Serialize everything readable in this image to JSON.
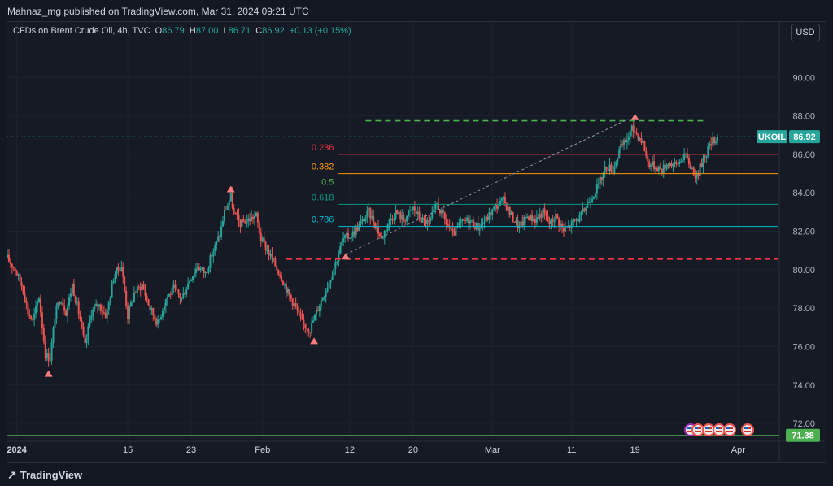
{
  "attribution": "Mahnaz_mg published on TradingView.com, Mar 31, 2024 09:21 UTC",
  "legend": {
    "title": "CFDs on Brent Crude Oil, 4h, TVC",
    "o_label": "O",
    "o_value": "86.79",
    "h_label": "H",
    "h_value": "87.00",
    "l_label": "L",
    "l_value": "86.71",
    "c_label": "C",
    "c_value": "86.92",
    "change": "+0.13 (+0.15%)"
  },
  "currency_button": "USD",
  "footer_brand": "TradingView",
  "colors": {
    "up": "#26a69a",
    "down": "#ef5350",
    "background": "#161a25",
    "fib_0236": "#f23645",
    "fib_0382": "#ff9800",
    "fib_05": "#4caf50",
    "fib_0618": "#089981",
    "fib_0786": "#00bcd4",
    "resistance": "#4caf50",
    "support": "#f23645",
    "trendline": "#9598a1",
    "marker": "#f77c80"
  },
  "chart_data": {
    "type": "candlestick",
    "symbol": "UKOIL",
    "timeframe": "4h",
    "ylim": [
      71.2,
      92.0
    ],
    "y_ticks": [
      "72.00",
      "74.00",
      "76.00",
      "78.00",
      "80.00",
      "82.00",
      "84.00",
      "86.00",
      "88.00",
      "90.00"
    ],
    "x_ticks": [
      {
        "label": "2024",
        "day": 1
      },
      {
        "label": "15",
        "day": 15
      },
      {
        "label": "23",
        "day": 23
      },
      {
        "label": "Feb",
        "day": 32
      },
      {
        "label": "12",
        "day": 43
      },
      {
        "label": "20",
        "day": 51
      },
      {
        "label": "Mar",
        "day": 61
      },
      {
        "label": "11",
        "day": 71
      },
      {
        "label": "19",
        "day": 79
      },
      {
        "label": "Apr",
        "day": 92
      }
    ],
    "last_price_label": "UKOIL",
    "last_price": 86.92,
    "bottom_line_value": 71.38,
    "bottom_line_label": "71.38",
    "fib_levels": [
      {
        "label": "0.236",
        "value": 86.0,
        "color": "#f23645"
      },
      {
        "label": "0.382",
        "value": 85.0,
        "color": "#ff9800"
      },
      {
        "label": "0.5",
        "value": 84.2,
        "color": "#4caf50"
      },
      {
        "label": "0.618",
        "value": 83.4,
        "color": "#089981"
      },
      {
        "label": "0.786",
        "value": 82.25,
        "color": "#00bcd4"
      }
    ],
    "resistance": {
      "value": 87.75,
      "from_day": 45,
      "to_day": 88
    },
    "support": {
      "value": 80.55,
      "from_day": 35,
      "to_day": 97
    },
    "trendline": {
      "from": {
        "day": 42.5,
        "value": 80.8
      },
      "to": {
        "day": 78.2,
        "value": 87.85
      }
    },
    "pivot_markers": [
      {
        "day": 5,
        "value": 74.6,
        "dir": "up"
      },
      {
        "day": 28,
        "value": 84.2,
        "dir": "up"
      },
      {
        "day": 38.5,
        "value": 76.3,
        "dir": "up"
      },
      {
        "day": 42.5,
        "value": 80.7,
        "dir": "up"
      },
      {
        "day": 79,
        "value": 87.95,
        "dir": "up"
      }
    ],
    "price_path": [
      [
        -0.2,
        80.6
      ],
      [
        0.8,
        80.0
      ],
      [
        1.8,
        79.0
      ],
      [
        2.4,
        77.8
      ],
      [
        3.0,
        77.3
      ],
      [
        3.8,
        78.6
      ],
      [
        4.6,
        75.6
      ],
      [
        5.2,
        75.4
      ],
      [
        5.8,
        77.6
      ],
      [
        6.5,
        78.6
      ],
      [
        7.2,
        77.8
      ],
      [
        8.0,
        79.2
      ],
      [
        8.8,
        77.8
      ],
      [
        9.6,
        76.0
      ],
      [
        10.4,
        77.8
      ],
      [
        11.3,
        78.2
      ],
      [
        12.3,
        77.6
      ],
      [
        13.3,
        79.8
      ],
      [
        14.2,
        80.2
      ],
      [
        15.0,
        77.6
      ],
      [
        15.8,
        78.8
      ],
      [
        16.8,
        79.2
      ],
      [
        17.8,
        78.0
      ],
      [
        18.8,
        77.2
      ],
      [
        19.8,
        78.5
      ],
      [
        20.8,
        79.0
      ],
      [
        21.8,
        78.5
      ],
      [
        22.8,
        79.5
      ],
      [
        23.8,
        80.2
      ],
      [
        24.8,
        79.8
      ],
      [
        25.6,
        80.8
      ],
      [
        26.6,
        81.8
      ],
      [
        27.2,
        83.0
      ],
      [
        28.0,
        83.8
      ],
      [
        28.4,
        82.9
      ],
      [
        29.2,
        82.4
      ],
      [
        30.2,
        82.6
      ],
      [
        31.2,
        82.8
      ],
      [
        31.8,
        81.6
      ],
      [
        32.6,
        81.0
      ],
      [
        33.4,
        80.4
      ],
      [
        34.4,
        79.6
      ],
      [
        35.2,
        78.8
      ],
      [
        36.0,
        78.2
      ],
      [
        37.0,
        77.2
      ],
      [
        38.0,
        76.9
      ],
      [
        38.6,
        77.6
      ],
      [
        39.6,
        78.6
      ],
      [
        40.6,
        79.6
      ],
      [
        41.4,
        80.6
      ],
      [
        42.2,
        81.6
      ],
      [
        43.2,
        81.8
      ],
      [
        44.2,
        82.3
      ],
      [
        45.4,
        83.0
      ],
      [
        46.4,
        82.2
      ],
      [
        47.0,
        81.6
      ],
      [
        47.8,
        82.4
      ],
      [
        48.8,
        83.0
      ],
      [
        49.8,
        82.6
      ],
      [
        51.0,
        83.2
      ],
      [
        52.0,
        82.6
      ],
      [
        53.0,
        82.4
      ],
      [
        54.0,
        83.4
      ],
      [
        55.0,
        82.6
      ],
      [
        56.0,
        81.8
      ],
      [
        57.0,
        82.4
      ],
      [
        58.0,
        82.6
      ],
      [
        59.2,
        82.2
      ],
      [
        60.2,
        82.6
      ],
      [
        61.2,
        83.2
      ],
      [
        62.4,
        83.6
      ],
      [
        63.4,
        82.8
      ],
      [
        64.4,
        82.2
      ],
      [
        65.4,
        82.8
      ],
      [
        66.4,
        82.6
      ],
      [
        67.4,
        83.0
      ],
      [
        68.2,
        82.4
      ],
      [
        69.0,
        82.8
      ],
      [
        70.0,
        82.0
      ],
      [
        71.0,
        82.4
      ],
      [
        72.2,
        82.8
      ],
      [
        73.2,
        83.6
      ],
      [
        74.4,
        84.4
      ],
      [
        75.4,
        85.4
      ],
      [
        76.2,
        85.2
      ],
      [
        77.0,
        86.2
      ],
      [
        78.0,
        86.8
      ],
      [
        78.6,
        87.3
      ],
      [
        79.2,
        87.1
      ],
      [
        80.0,
        86.6
      ],
      [
        80.6,
        85.6
      ],
      [
        81.4,
        85.4
      ],
      [
        82.4,
        85.2
      ],
      [
        83.2,
        85.6
      ],
      [
        84.2,
        85.4
      ],
      [
        85.2,
        86.0
      ],
      [
        86.0,
        85.4
      ],
      [
        86.8,
        84.8
      ],
      [
        87.6,
        85.8
      ],
      [
        88.6,
        86.6
      ],
      [
        89.4,
        86.92
      ]
    ]
  }
}
